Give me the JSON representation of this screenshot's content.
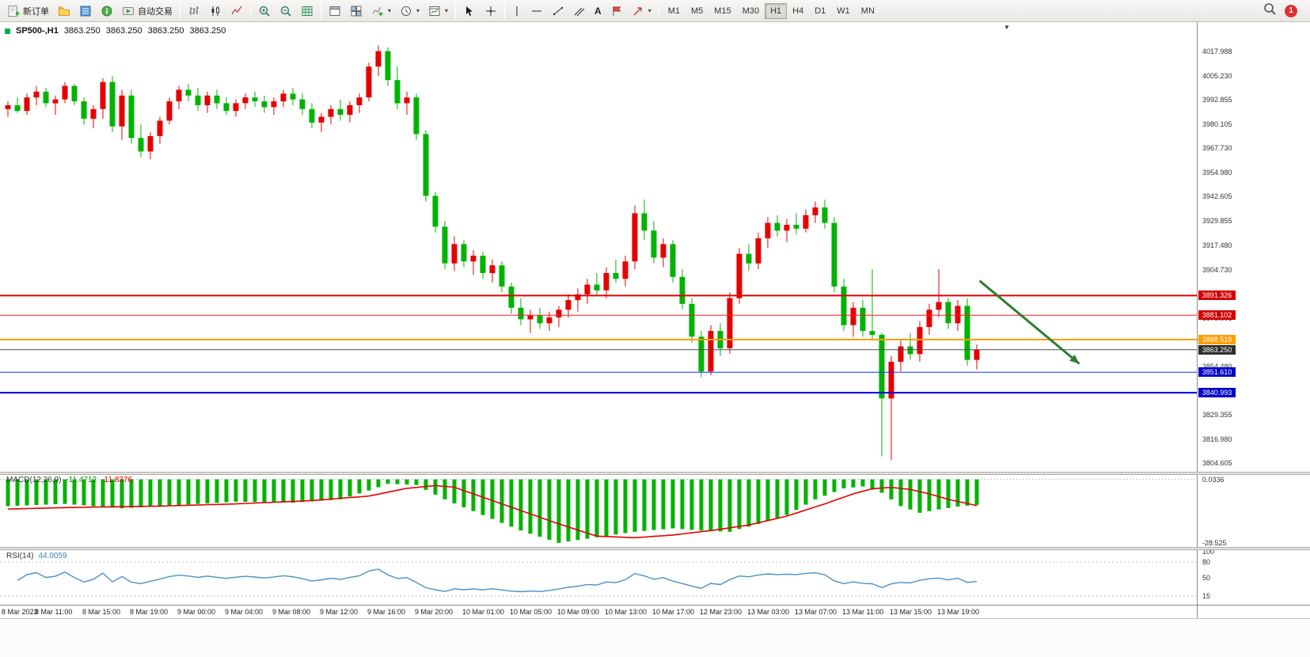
{
  "window": {
    "notification_count": "1"
  },
  "icons": {
    "caret": "▾",
    "corner_collapse": "▼"
  },
  "toolbar": {
    "new_order_label": "新订单",
    "autotrade_label": "自动交易",
    "text_tool_label": "A",
    "timeframes": [
      "M1",
      "M5",
      "M15",
      "M30",
      "H1",
      "H4",
      "D1",
      "W1",
      "MN"
    ],
    "active_timeframe": "H1"
  },
  "symbol_header": {
    "title": "SP500-,H1",
    "open": "3863.250",
    "high": "3863.250",
    "low": "3863.250",
    "close": "3863.250"
  },
  "colors": {
    "up": "#e60000",
    "down": "#00b300",
    "current_badge": "#2e2e2e"
  },
  "chart_data": [
    {
      "type": "candlestick",
      "symbol": "SP500-,H1",
      "ylim": [
        3800,
        4024
      ],
      "axis_ticks": [
        4017.988,
        4005.23,
        3992.855,
        3980.105,
        3967.73,
        3954.98,
        3942.605,
        3929.855,
        3917.48,
        3904.73,
        3879.605,
        3854.48,
        3829.355,
        3816.98,
        3804.605
      ],
      "time_labels": [
        "8 Mar 2023",
        "8 Mar 11:00",
        "8 Mar 15:00",
        "8 Mar 19:00",
        "9 Mar 00:00",
        "9 Mar 04:00",
        "9 Mar 08:00",
        "9 Mar 12:00",
        "9 Mar 16:00",
        "9 Mar 20:00",
        "10 Mar 01:00",
        "10 Mar 05:00",
        "10 Mar 09:00",
        "10 Mar 13:00",
        "10 Mar 17:00",
        "12 Mar 23:00",
        "13 Mar 03:00",
        "13 Mar 07:00",
        "13 Mar 11:00",
        "13 Mar 15:00",
        "13 Mar 19:00"
      ],
      "candles": [
        [
          3988,
          3992,
          3984,
          3990
        ],
        [
          3990,
          3994,
          3986,
          3987
        ],
        [
          3987,
          3996,
          3985,
          3994
        ],
        [
          3994,
          4000,
          3990,
          3997
        ],
        [
          3997,
          3999,
          3989,
          3991
        ],
        [
          3991,
          3995,
          3985,
          3993
        ],
        [
          3993,
          4002,
          3991,
          4000
        ],
        [
          4000,
          4001,
          3990,
          3992
        ],
        [
          3992,
          3994,
          3980,
          3983
        ],
        [
          3983,
          3990,
          3978,
          3988
        ],
        [
          3988,
          4004,
          3983,
          4002
        ],
        [
          4002,
          4005,
          3976,
          3979
        ],
        [
          3979,
          3998,
          3972,
          3995
        ],
        [
          3995,
          3998,
          3970,
          3973
        ],
        [
          3973,
          3980,
          3963,
          3966
        ],
        [
          3966,
          3976,
          3962,
          3974
        ],
        [
          3974,
          3984,
          3970,
          3982
        ],
        [
          3982,
          3994,
          3980,
          3992
        ],
        [
          3992,
          4000,
          3988,
          3998
        ],
        [
          3998,
          4001,
          3992,
          3995
        ],
        [
          3995,
          3999,
          3987,
          3990
        ],
        [
          3990,
          3997,
          3986,
          3995
        ],
        [
          3995,
          3998,
          3988,
          3991
        ],
        [
          3991,
          3994,
          3985,
          3987
        ],
        [
          3987,
          3993,
          3984,
          3991
        ],
        [
          3991,
          3996,
          3988,
          3994
        ],
        [
          3994,
          3997,
          3989,
          3992
        ],
        [
          3992,
          3995,
          3986,
          3989
        ],
        [
          3989,
          3994,
          3985,
          3992
        ],
        [
          3992,
          3998,
          3989,
          3996
        ],
        [
          3996,
          3999,
          3990,
          3993
        ],
        [
          3993,
          3996,
          3985,
          3988
        ],
        [
          3988,
          3991,
          3978,
          3981
        ],
        [
          3981,
          3986,
          3976,
          3984
        ],
        [
          3984,
          3990,
          3980,
          3988
        ],
        [
          3988,
          3993,
          3982,
          3985
        ],
        [
          3985,
          3992,
          3981,
          3990
        ],
        [
          3990,
          3996,
          3986,
          3994
        ],
        [
          3994,
          4012,
          3992,
          4010
        ],
        [
          4010,
          4021,
          4005,
          4018
        ],
        [
          4018,
          4020,
          4000,
          4003
        ],
        [
          4003,
          4010,
          3988,
          3991
        ],
        [
          3991,
          3997,
          3985,
          3994
        ],
        [
          3994,
          3996,
          3972,
          3975
        ],
        [
          3975,
          3977,
          3940,
          3943
        ],
        [
          3943,
          3945,
          3924,
          3927
        ],
        [
          3927,
          3930,
          3905,
          3908
        ],
        [
          3908,
          3922,
          3904,
          3918
        ],
        [
          3918,
          3920,
          3906,
          3909
        ],
        [
          3909,
          3915,
          3902,
          3912
        ],
        [
          3912,
          3914,
          3900,
          3903
        ],
        [
          3903,
          3910,
          3898,
          3907
        ],
        [
          3907,
          3909,
          3893,
          3896
        ],
        [
          3896,
          3898,
          3882,
          3885
        ],
        [
          3885,
          3890,
          3876,
          3879
        ],
        [
          3879,
          3884,
          3872,
          3881
        ],
        [
          3881,
          3885,
          3874,
          3877
        ],
        [
          3877,
          3883,
          3873,
          3880
        ],
        [
          3880,
          3886,
          3875,
          3884
        ],
        [
          3884,
          3892,
          3880,
          3889
        ],
        [
          3889,
          3895,
          3883,
          3892
        ],
        [
          3892,
          3900,
          3887,
          3897
        ],
        [
          3897,
          3903,
          3891,
          3894
        ],
        [
          3894,
          3906,
          3890,
          3903
        ],
        [
          3903,
          3910,
          3898,
          3900
        ],
        [
          3900,
          3912,
          3896,
          3909
        ],
        [
          3909,
          3938,
          3905,
          3934
        ],
        [
          3934,
          3941,
          3920,
          3925
        ],
        [
          3925,
          3930,
          3908,
          3911
        ],
        [
          3911,
          3921,
          3906,
          3918
        ],
        [
          3918,
          3920,
          3898,
          3901
        ],
        [
          3901,
          3905,
          3884,
          3887
        ],
        [
          3887,
          3890,
          3867,
          3870
        ],
        [
          3870,
          3873,
          3849,
          3852
        ],
        [
          3852,
          3876,
          3850,
          3873
        ],
        [
          3873,
          3877,
          3860,
          3864
        ],
        [
          3864,
          3893,
          3861,
          3890
        ],
        [
          3890,
          3916,
          3887,
          3913
        ],
        [
          3913,
          3918,
          3904,
          3908
        ],
        [
          3908,
          3924,
          3905,
          3921
        ],
        [
          3921,
          3932,
          3916,
          3929
        ],
        [
          3929,
          3933,
          3922,
          3925
        ],
        [
          3925,
          3931,
          3919,
          3928
        ],
        [
          3928,
          3934,
          3923,
          3926
        ],
        [
          3926,
          3936,
          3924,
          3933
        ],
        [
          3933,
          3940,
          3929,
          3937
        ],
        [
          3937,
          3941,
          3926,
          3929
        ],
        [
          3929,
          3932,
          3893,
          3896
        ],
        [
          3896,
          3900,
          3873,
          3876
        ],
        [
          3876,
          3888,
          3870,
          3885
        ],
        [
          3885,
          3889,
          3870,
          3873
        ],
        [
          3873,
          3905,
          3868,
          3871
        ],
        [
          3871,
          3872,
          3808,
          3838
        ],
        [
          3838,
          3860,
          3806,
          3857
        ],
        [
          3857,
          3868,
          3852,
          3865
        ],
        [
          3865,
          3872,
          3858,
          3861
        ],
        [
          3861,
          3878,
          3857,
          3875
        ],
        [
          3875,
          3887,
          3871,
          3884
        ],
        [
          3884,
          3905,
          3880,
          3888
        ],
        [
          3888,
          3890,
          3874,
          3877
        ],
        [
          3877,
          3889,
          3873,
          3886
        ],
        [
          3886,
          3890,
          3855,
          3858
        ],
        [
          3858,
          3866,
          3853,
          3863.25
        ]
      ],
      "levels": [
        {
          "price": 3891.326,
          "color": "#e60000",
          "width": 2,
          "badge": "#d40000"
        },
        {
          "price": 3881.102,
          "color": "#ff1a1a",
          "width": 1,
          "badge": "#d40000"
        },
        {
          "price": 3868.519,
          "color": "#ff9d00",
          "width": 2,
          "badge": "#ff9d00"
        },
        {
          "price": 3851.61,
          "color": "#0033ff",
          "width": 1,
          "badge": "#0000cc"
        },
        {
          "price": 3840.993,
          "color": "#0000e6",
          "width": 2,
          "badge": "#0000cc"
        }
      ],
      "current_price": {
        "price": 3863.25,
        "color": "#4d4d4d"
      },
      "arrow": {
        "from_candle": 102.3,
        "from_price": 3899,
        "to_candle": 112.8,
        "to_price": 3856,
        "color": "#2e7d32"
      }
    },
    {
      "type": "macd",
      "label": "MACD(12,26,9)",
      "main_value": -11.4712,
      "signal_value": -11.8376,
      "ylim": [
        -30,
        2
      ],
      "axis_labels": [
        {
          "text": "0.0336",
          "value": 0.0336
        },
        {
          "text": "-28.525",
          "value": -28.525
        }
      ],
      "histogram_color": "#00b300",
      "signal_color": "#e60000",
      "macd_points": [
        [
          0,
          -12
        ],
        [
          6,
          -11
        ],
        [
          12,
          -13
        ],
        [
          18,
          -11.5
        ],
        [
          24,
          -10
        ],
        [
          30,
          -10.5
        ],
        [
          35,
          -9
        ],
        [
          38,
          -5
        ],
        [
          40,
          -2
        ],
        [
          43,
          -2.5
        ],
        [
          46,
          -9
        ],
        [
          50,
          -16
        ],
        [
          54,
          -23
        ],
        [
          58,
          -28.5
        ],
        [
          62,
          -26
        ],
        [
          66,
          -23.5
        ],
        [
          70,
          -22
        ],
        [
          73,
          -23
        ],
        [
          76,
          -23.5
        ],
        [
          79,
          -20
        ],
        [
          82,
          -16
        ],
        [
          85,
          -9
        ],
        [
          88,
          -4
        ],
        [
          90,
          -3.2
        ],
        [
          92,
          -6
        ],
        [
          94,
          -12
        ],
        [
          96,
          -15
        ],
        [
          98,
          -13.5
        ],
        [
          100,
          -12.2
        ],
        [
          102,
          -11.4712
        ]
      ],
      "signal_points": [
        [
          0,
          -13.3
        ],
        [
          8,
          -12.5
        ],
        [
          16,
          -12
        ],
        [
          24,
          -11
        ],
        [
          32,
          -9.5
        ],
        [
          38,
          -7.5
        ],
        [
          42,
          -4
        ],
        [
          45,
          -2.8
        ],
        [
          47,
          -3.5
        ],
        [
          50,
          -8
        ],
        [
          54,
          -14
        ],
        [
          58,
          -20
        ],
        [
          62,
          -25.5
        ],
        [
          66,
          -26.2
        ],
        [
          70,
          -25
        ],
        [
          74,
          -23
        ],
        [
          78,
          -20.5
        ],
        [
          82,
          -16.5
        ],
        [
          86,
          -11
        ],
        [
          89,
          -6.5
        ],
        [
          91,
          -4.2
        ],
        [
          93,
          -3.6
        ],
        [
          95,
          -4.5
        ],
        [
          97,
          -6.5
        ],
        [
          99,
          -9
        ],
        [
          101,
          -10.8
        ],
        [
          102,
          -11.8376
        ]
      ]
    },
    {
      "type": "rsi",
      "label": "RSI(14)",
      "value": 44.0059,
      "ylim": [
        0,
        100
      ],
      "axis_labels": [
        100,
        80,
        50,
        15
      ],
      "level_lines": [
        80,
        15
      ],
      "line_color": "#4a90c8",
      "source": "closes"
    }
  ]
}
